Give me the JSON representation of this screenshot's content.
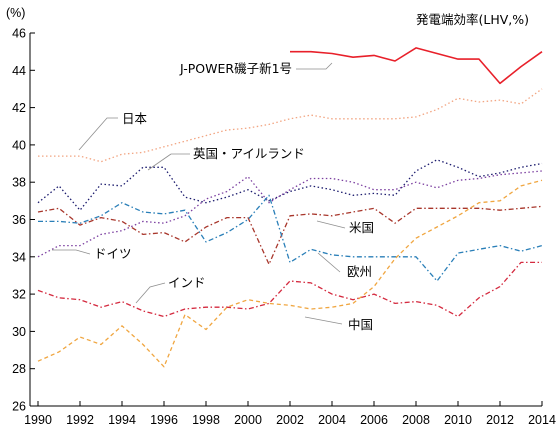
{
  "chart_data": {
    "type": "line",
    "title": "発電端効率(LHV,%)",
    "y_unit": "(%)",
    "xlabel": "",
    "ylabel": "",
    "xlim": [
      1990,
      2014
    ],
    "ylim": [
      26,
      46
    ],
    "x_ticks": [
      "1990",
      "1992",
      "1994",
      "1996",
      "1998",
      "2000",
      "2002",
      "2004",
      "2006",
      "2008",
      "2010",
      "2012",
      "2014"
    ],
    "y_ticks": [
      "26",
      "28",
      "30",
      "32",
      "34",
      "36",
      "38",
      "40",
      "42",
      "44",
      "46"
    ],
    "grid": false,
    "legend": "inline labels",
    "series": [
      {
        "name": "J-POWER磯子新1号",
        "color": "#e8202a",
        "dash": "solid",
        "x": [
          2002,
          2003,
          2004,
          2005,
          2006,
          2007,
          2008,
          2009,
          2010,
          2011,
          2012,
          2013,
          2014
        ],
        "values": [
          45.0,
          45.0,
          44.9,
          44.7,
          44.8,
          44.5,
          45.2,
          44.9,
          44.6,
          44.6,
          43.3,
          44.2,
          45.0
        ]
      },
      {
        "name": "日本",
        "color": "#f2a582",
        "dash": "dot",
        "x": [
          1990,
          1991,
          1992,
          1993,
          1994,
          1995,
          1996,
          1997,
          1998,
          1999,
          2000,
          2001,
          2002,
          2003,
          2004,
          2005,
          2006,
          2007,
          2008,
          2009,
          2010,
          2011,
          2012,
          2013,
          2014
        ],
        "values": [
          39.4,
          39.4,
          39.4,
          39.1,
          39.5,
          39.6,
          39.9,
          40.2,
          40.5,
          40.8,
          40.9,
          41.1,
          41.4,
          41.6,
          41.4,
          41.4,
          41.4,
          41.4,
          41.5,
          41.9,
          42.5,
          42.3,
          42.4,
          42.2,
          43.0
        ]
      },
      {
        "name": "英国・アイルランド",
        "color": "#1c1c6e",
        "dash": "dot",
        "x": [
          1990,
          1991,
          1992,
          1993,
          1994,
          1995,
          1996,
          1997,
          1998,
          1999,
          2000,
          2001,
          2002,
          2003,
          2004,
          2005,
          2006,
          2007,
          2008,
          2009,
          2010,
          2011,
          2012,
          2013,
          2014
        ],
        "values": [
          36.9,
          37.8,
          36.5,
          37.9,
          37.8,
          38.8,
          38.8,
          37.2,
          36.9,
          37.2,
          37.6,
          37.0,
          37.5,
          37.8,
          37.6,
          37.3,
          37.4,
          37.3,
          38.6,
          39.2,
          38.8,
          38.3,
          38.5,
          38.8,
          39.0
        ]
      },
      {
        "name": "米国",
        "color": "#a8362b",
        "dash": "dashdot",
        "x": [
          1990,
          1991,
          1992,
          1993,
          1994,
          1995,
          1996,
          1997,
          1998,
          1999,
          2000,
          2001,
          2002,
          2003,
          2004,
          2005,
          2006,
          2007,
          2008,
          2009,
          2010,
          2011,
          2012,
          2013,
          2014
        ],
        "values": [
          36.4,
          36.6,
          35.7,
          36.1,
          35.9,
          35.2,
          35.3,
          34.8,
          35.6,
          36.1,
          36.1,
          33.6,
          36.2,
          36.3,
          36.2,
          36.4,
          36.6,
          35.8,
          36.6,
          36.6,
          36.6,
          36.6,
          36.5,
          36.6,
          36.7
        ]
      },
      {
        "name": "ドイツ",
        "color": "#7b3fa0",
        "dash": "dot",
        "x": [
          1990,
          1991,
          1992,
          1993,
          1994,
          1995,
          1996,
          1997,
          1998,
          1999,
          2000,
          2001,
          2002,
          2003,
          2004,
          2005,
          2006,
          2007,
          2008,
          2009,
          2010,
          2011,
          2012,
          2013,
          2014
        ],
        "values": [
          34.0,
          34.6,
          34.6,
          35.2,
          35.4,
          35.9,
          35.8,
          36.2,
          37.1,
          37.5,
          38.3,
          36.9,
          37.6,
          38.2,
          38.2,
          38.0,
          37.6,
          37.6,
          38.0,
          37.7,
          38.1,
          38.2,
          38.4,
          38.5,
          38.6
        ]
      },
      {
        "name": "欧州",
        "color": "#2a7fb8",
        "dash": "dashdot",
        "x": [
          1990,
          1991,
          1992,
          1993,
          1994,
          1995,
          1996,
          1997,
          1998,
          1999,
          2000,
          2001,
          2002,
          2003,
          2004,
          2005,
          2006,
          2007,
          2008,
          2009,
          2010,
          2011,
          2012,
          2013,
          2014
        ],
        "values": [
          35.9,
          35.9,
          35.8,
          36.2,
          36.9,
          36.4,
          36.3,
          36.5,
          34.8,
          35.3,
          36.0,
          37.3,
          33.7,
          34.4,
          34.1,
          34.0,
          34.0,
          34.0,
          34.0,
          32.7,
          34.2,
          34.4,
          34.6,
          34.3,
          34.6
        ]
      },
      {
        "name": "インド",
        "color": "#d42a3f",
        "dash": "dashdot",
        "x": [
          1990,
          1991,
          1992,
          1993,
          1994,
          1995,
          1996,
          1997,
          1998,
          1999,
          2000,
          2001,
          2002,
          2003,
          2004,
          2005,
          2006,
          2007,
          2008,
          2009,
          2010,
          2011,
          2012,
          2013,
          2014
        ],
        "values": [
          32.2,
          31.8,
          31.7,
          31.3,
          31.6,
          31.1,
          30.8,
          31.2,
          31.3,
          31.3,
          31.2,
          31.5,
          32.7,
          32.6,
          32.0,
          31.7,
          32.0,
          31.5,
          31.6,
          31.4,
          30.8,
          31.8,
          32.4,
          33.7,
          33.7
        ]
      },
      {
        "name": "中国",
        "color": "#f0a640",
        "dash": "dash",
        "x": [
          1990,
          1991,
          1992,
          1993,
          1994,
          1995,
          1996,
          1997,
          1998,
          1999,
          2000,
          2001,
          2002,
          2003,
          2004,
          2005,
          2006,
          2007,
          2008,
          2009,
          2010,
          2011,
          2012,
          2013,
          2014
        ],
        "values": [
          28.4,
          28.9,
          29.7,
          29.3,
          30.3,
          29.3,
          28.1,
          30.9,
          30.1,
          31.3,
          31.7,
          31.5,
          31.4,
          31.2,
          31.3,
          31.5,
          32.4,
          33.9,
          35.0,
          35.6,
          36.2,
          36.9,
          37.0,
          37.8,
          38.1
        ]
      }
    ],
    "annotations": [
      {
        "text": "J-POWER磯子新1号",
        "series": "J-POWER磯子新1号"
      },
      {
        "text": "日本",
        "series": "日本"
      },
      {
        "text": "英国・アイルランド",
        "series": "英国・アイルランド"
      },
      {
        "text": "米国",
        "series": "米国"
      },
      {
        "text": "ドイツ",
        "series": "ドイツ"
      },
      {
        "text": "欧州",
        "series": "欧州"
      },
      {
        "text": "インド",
        "series": "インド"
      },
      {
        "text": "中国",
        "series": "中国"
      }
    ]
  }
}
